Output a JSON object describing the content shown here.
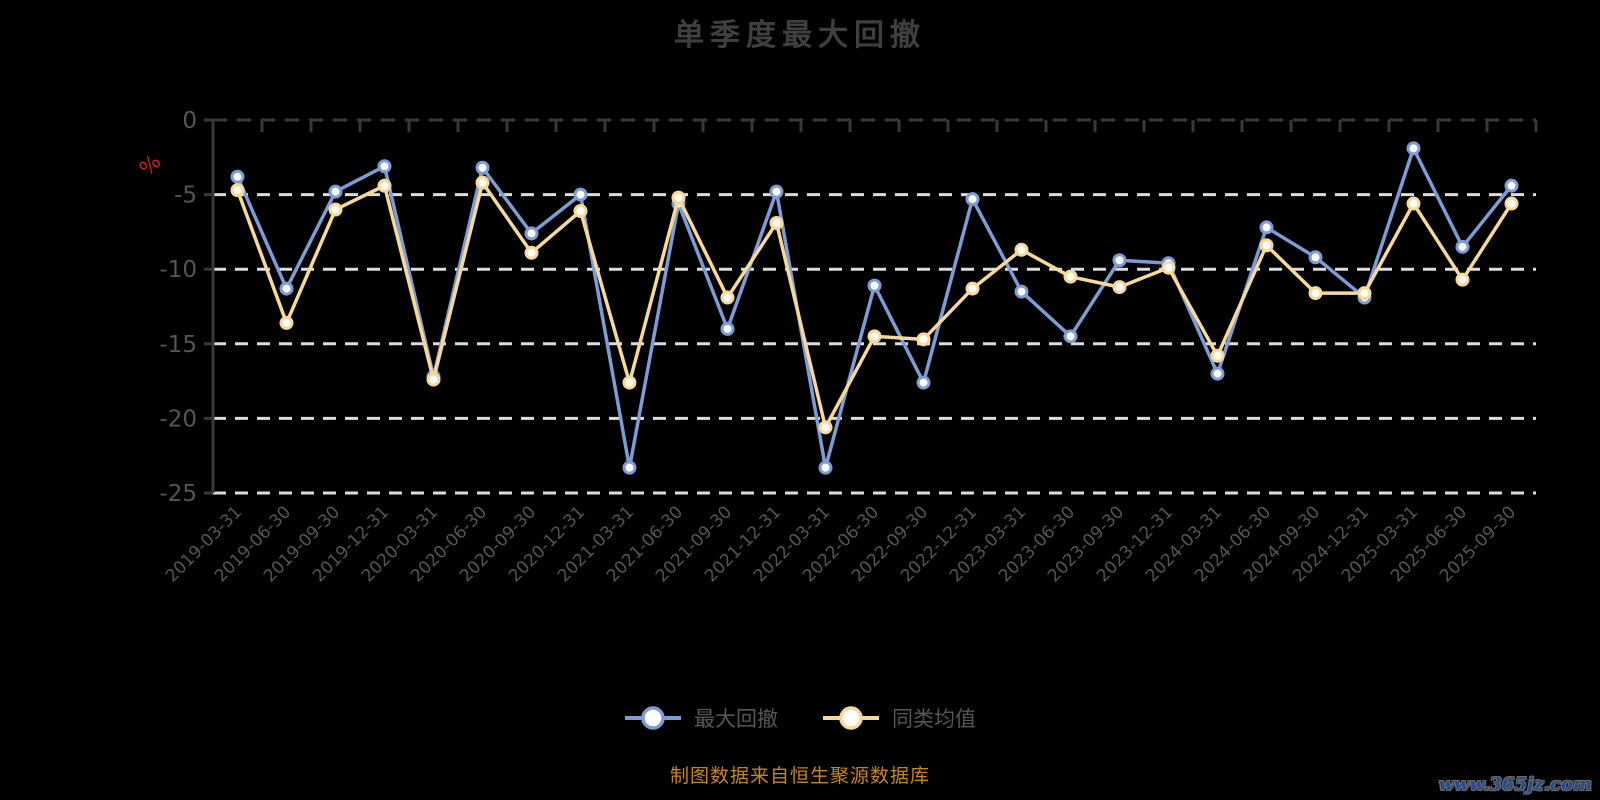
{
  "title": "单季度最大回撤",
  "source_note": "制图数据来自恒生聚源数据库",
  "watermark": "www.365jz.com",
  "colors": {
    "background": "#000000",
    "title": "#3f3f3f",
    "axis_line": "#383838",
    "axis_tick": "#383838",
    "axis_label": "#555555",
    "gridline": "#dcdcdc",
    "unit_label": "#cc1e1e",
    "legend_text": "#565656",
    "source_note": "#c8861a",
    "watermark": "#274b8b",
    "marker_fill": "#ffffff"
  },
  "chart_data": {
    "type": "line",
    "title": "单季度最大回撤",
    "xlabel": "",
    "ylabel": "%",
    "ylim": [
      -25,
      0
    ],
    "yticks": [
      0,
      -5,
      -10,
      -15,
      -20,
      -25
    ],
    "grid": true,
    "grid_style": "dashed",
    "legend_position": "bottom",
    "categories": [
      "2019-03-31",
      "2019-06-30",
      "2019-09-30",
      "2019-12-31",
      "2020-03-31",
      "2020-06-30",
      "2020-09-30",
      "2020-12-31",
      "2021-03-31",
      "2021-06-30",
      "2021-09-30",
      "2021-12-31",
      "2022-03-31",
      "2022-06-30",
      "2022-09-30",
      "2022-12-31",
      "2023-03-31",
      "2023-06-30",
      "2023-09-30",
      "2023-12-31",
      "2024-03-31",
      "2024-06-30",
      "2024-09-30",
      "2024-12-31",
      "2025-03-31",
      "2025-06-30",
      "2025-09-30"
    ],
    "series": [
      {
        "name": "最大回撤",
        "color": "#7e9cd3",
        "values": [
          -3.8,
          -11.3,
          -4.8,
          -3.1,
          -17.2,
          -3.2,
          -7.6,
          -5.0,
          -23.3,
          -5.6,
          -14.0,
          -4.8,
          -23.3,
          -11.1,
          -17.6,
          -5.3,
          -11.5,
          -14.5,
          -9.4,
          -9.6,
          -17.0,
          -7.2,
          -9.2,
          -11.9,
          -1.9,
          -8.5,
          -4.4
        ]
      },
      {
        "name": "同类均值",
        "color": "#f6d998",
        "values": [
          -4.7,
          -13.6,
          -6.0,
          -4.4,
          -17.4,
          -4.2,
          -8.9,
          -6.1,
          -17.6,
          -5.2,
          -11.9,
          -6.9,
          -20.6,
          -14.5,
          -14.7,
          -11.3,
          -8.7,
          -10.5,
          -11.2,
          -9.9,
          -15.8,
          -8.4,
          -11.6,
          -11.6,
          -5.6,
          -10.7,
          -5.6
        ]
      }
    ]
  }
}
